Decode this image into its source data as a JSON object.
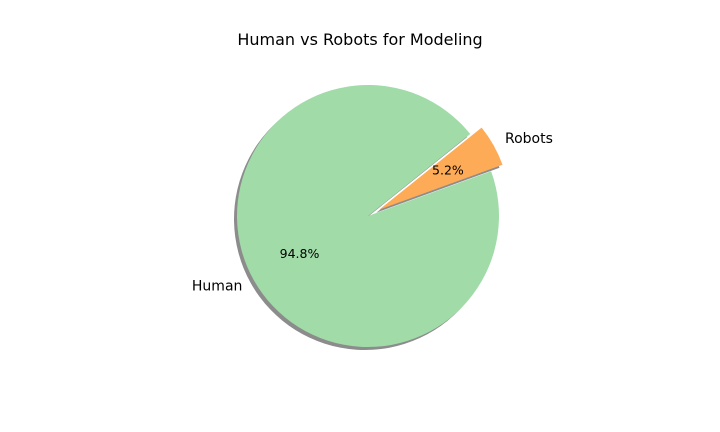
{
  "chart_data": {
    "type": "pie",
    "title": "Human vs Robots for Modeling",
    "slices": [
      {
        "label": "Human",
        "value": 94.8,
        "pct_label": "94.8%",
        "color": "#a0dba8",
        "exploded": false
      },
      {
        "label": "Robots",
        "value": 5.2,
        "pct_label": "5.2%",
        "color": "#fdab56",
        "exploded": true
      }
    ],
    "shadow": true,
    "shadow_color": "#8c8c8c"
  }
}
